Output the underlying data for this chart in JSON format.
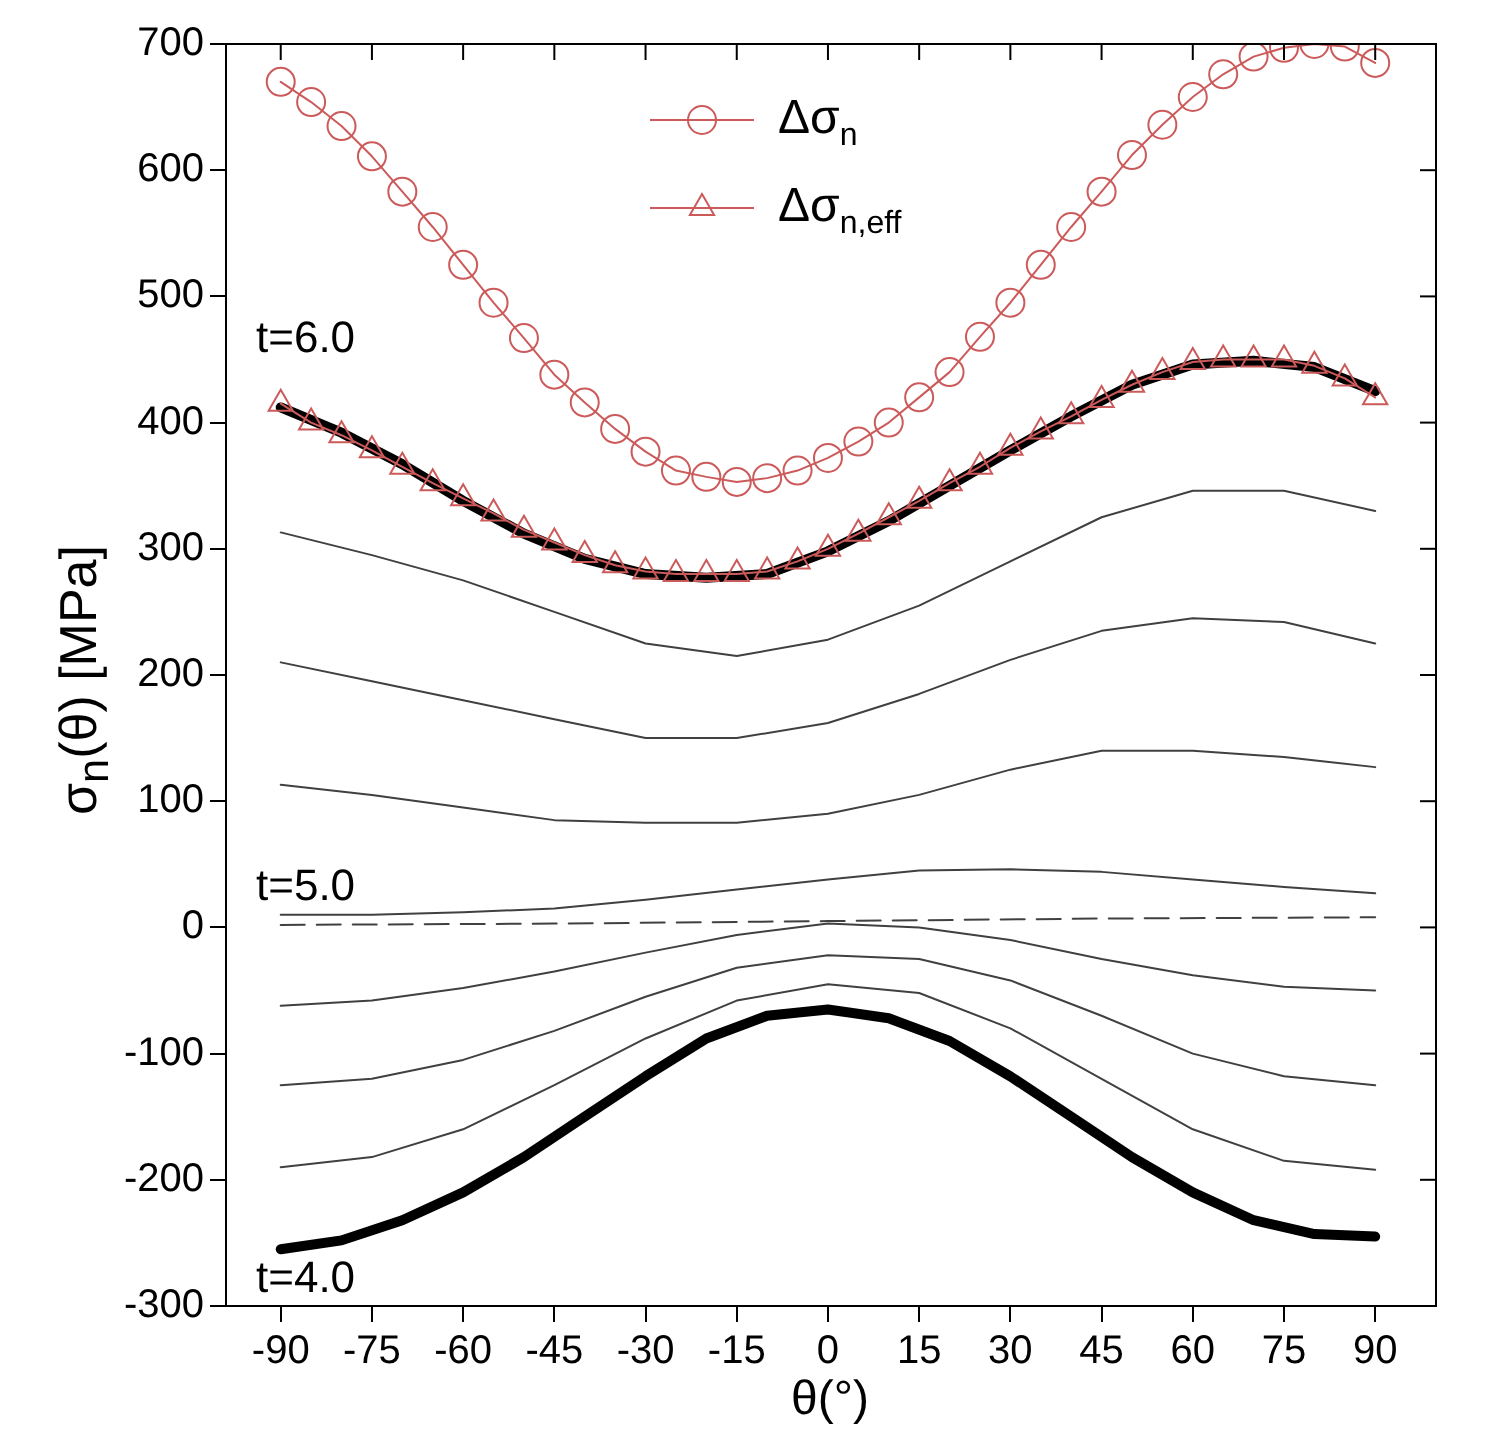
{
  "chart_data": {
    "type": "line",
    "xlabel": "θ(°)",
    "ylabel": "σ$_{n}$(θ) [MPa]",
    "x": [
      -90,
      -85,
      -80,
      -75,
      -70,
      -65,
      -60,
      -55,
      -50,
      -45,
      -40,
      -35,
      -30,
      -25,
      -20,
      -15,
      -10,
      -5,
      0,
      5,
      10,
      15,
      20,
      25,
      30,
      35,
      40,
      45,
      50,
      55,
      60,
      65,
      70,
      75,
      80,
      85,
      90
    ],
    "xlim": [
      -99,
      100
    ],
    "xticks": [
      -90,
      -75,
      -60,
      -45,
      -30,
      -15,
      0,
      15,
      30,
      45,
      60,
      75,
      90
    ],
    "ylim": [
      -300,
      700
    ],
    "yticks": [
      -300,
      -200,
      -100,
      0,
      100,
      200,
      300,
      400,
      500,
      600,
      700
    ],
    "grid": false,
    "legend": "top",
    "marker": "none",
    "line_style": "solid",
    "series": [
      {
        "name": "Δσ$_{n}$",
        "color": "#cc5a5a",
        "marker": "circle",
        "values": [
          670,
          654,
          635,
          611,
          583,
          555,
          525,
          495,
          467,
          438,
          416,
          395,
          377,
          362,
          357,
          353,
          356,
          362,
          372,
          385,
          400,
          420,
          440,
          468,
          495,
          525,
          555,
          583,
          612,
          636,
          658,
          676,
          690,
          697,
          700,
          698,
          685
        ]
      },
      {
        "name": "Δσ$_{n,eff}$",
        "color": "#cc5a5a",
        "marker": "triangle",
        "values": [
          415,
          400,
          390,
          378,
          365,
          352,
          340,
          328,
          315,
          305,
          295,
          287,
          282,
          280,
          280,
          280,
          282,
          290,
          300,
          312,
          325,
          338,
          352,
          365,
          380,
          393,
          405,
          418,
          430,
          440,
          448,
          450,
          450,
          450,
          445,
          435,
          420
        ]
      },
      {
        "color": "#000000",
        "x": [
          -90,
          -80,
          -70,
          -60,
          -50,
          -40,
          -30,
          -20,
          -10,
          0,
          10,
          20,
          30,
          40,
          50,
          60,
          70,
          80,
          90
        ],
        "values": [
          412,
          392,
          367,
          338,
          312,
          292,
          280,
          277,
          280,
          298,
          322,
          350,
          378,
          405,
          430,
          446,
          449,
          444,
          425
        ]
      },
      {
        "color": "#404040",
        "x": [
          -90,
          -75,
          -60,
          -45,
          -30,
          -15,
          0,
          15,
          30,
          45,
          60,
          75,
          90
        ],
        "values": [
          313,
          295,
          275,
          250,
          225,
          215,
          228,
          255,
          290,
          325,
          346,
          346,
          330
        ]
      },
      {
        "color": "#404040",
        "x": [
          -90,
          -75,
          -60,
          -45,
          -30,
          -15,
          0,
          15,
          30,
          45,
          60,
          75,
          90
        ],
        "values": [
          210,
          195,
          180,
          165,
          150,
          150,
          162,
          185,
          212,
          235,
          245,
          242,
          225
        ]
      },
      {
        "color": "#404040",
        "x": [
          -90,
          -75,
          -60,
          -45,
          -30,
          -15,
          0,
          15,
          30,
          45,
          60,
          75,
          90
        ],
        "values": [
          113,
          105,
          95,
          85,
          83,
          83,
          90,
          105,
          125,
          140,
          140,
          135,
          127
        ]
      },
      {
        "color": "#404040",
        "x": [
          -90,
          -75,
          -60,
          -45,
          -30,
          -15,
          0,
          15,
          30,
          45,
          60,
          75,
          90
        ],
        "values": [
          10,
          10,
          12,
          15,
          22,
          30,
          38,
          45,
          46,
          44,
          38,
          32,
          27
        ]
      },
      {
        "color": "#404040",
        "line_style": "dashed",
        "x": [
          -90,
          -45,
          0,
          45,
          90
        ],
        "values": [
          2,
          3,
          5,
          7,
          8
        ]
      },
      {
        "color": "#404040",
        "x": [
          -90,
          -75,
          -60,
          -45,
          -30,
          -15,
          0,
          15,
          30,
          45,
          60,
          75,
          90
        ],
        "values": [
          -62,
          -58,
          -48,
          -35,
          -20,
          -6,
          3,
          0,
          -10,
          -25,
          -38,
          -47,
          -50
        ]
      },
      {
        "color": "#404040",
        "x": [
          -90,
          -75,
          -60,
          -45,
          -30,
          -15,
          0,
          15,
          30,
          45,
          60,
          75,
          90
        ],
        "values": [
          -125,
          -120,
          -105,
          -82,
          -55,
          -32,
          -22,
          -25,
          -42,
          -70,
          -100,
          -118,
          -125
        ]
      },
      {
        "color": "#404040",
        "x": [
          -90,
          -75,
          -60,
          -45,
          -30,
          -15,
          0,
          15,
          30,
          45,
          60,
          75,
          90
        ],
        "values": [
          -190,
          -182,
          -160,
          -125,
          -88,
          -58,
          -45,
          -52,
          -80,
          -120,
          -160,
          -185,
          -192
        ]
      },
      {
        "color": "#000000",
        "x": [
          -90,
          -80,
          -70,
          -60,
          -50,
          -40,
          -30,
          -20,
          -10,
          0,
          10,
          20,
          30,
          40,
          50,
          60,
          70,
          80,
          90
        ],
        "values": [
          -255,
          -248,
          -232,
          -210,
          -182,
          -150,
          -118,
          -88,
          -70,
          -65,
          -72,
          -90,
          -118,
          -150,
          -182,
          -210,
          -232,
          -243,
          -245
        ]
      }
    ],
    "annotations": [
      "t=6.0",
      "t=5.0",
      "t=4.0"
    ]
  }
}
